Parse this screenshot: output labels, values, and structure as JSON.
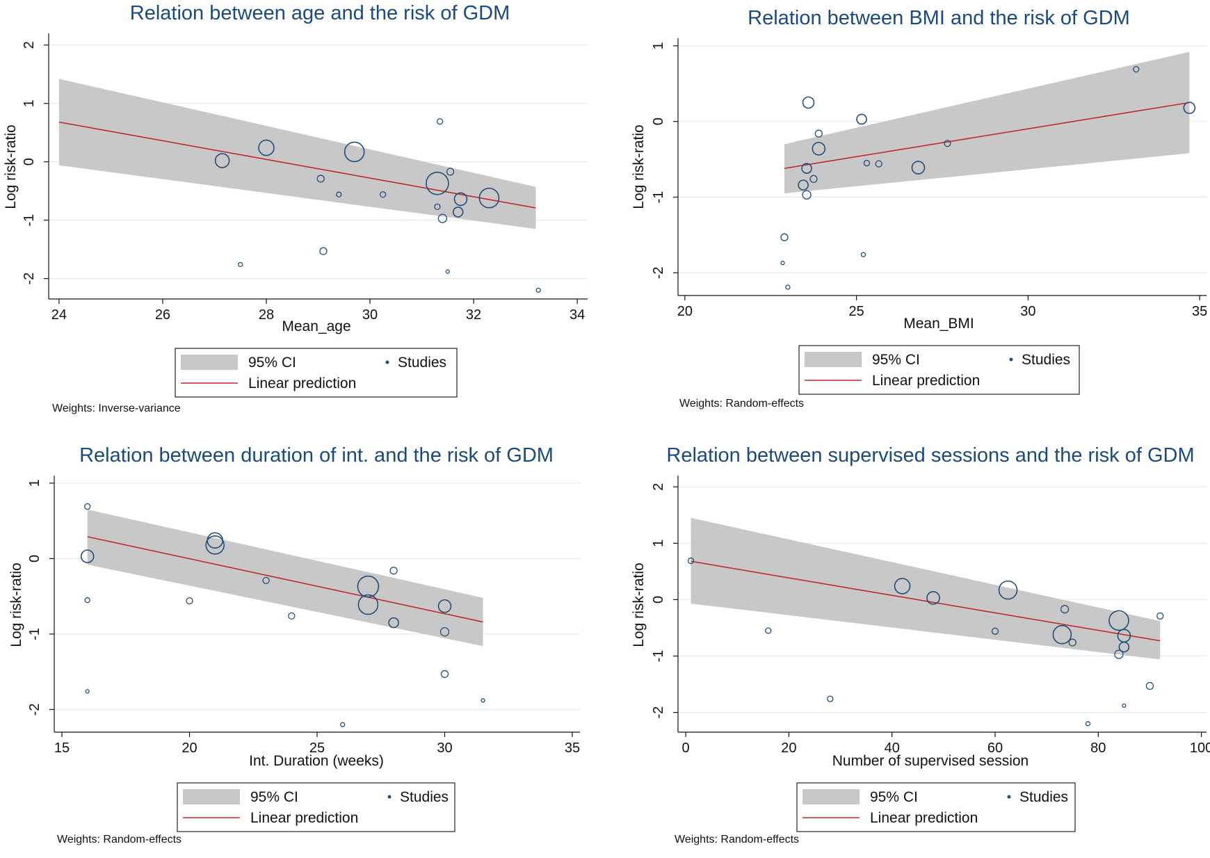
{
  "chart_data": [
    {
      "type": "scatter",
      "title": "Relation between age and the risk of GDM",
      "xlabel": "Mean_age",
      "ylabel": "Log risk-ratio",
      "xlim": [
        23.8,
        34.2
      ],
      "ylim": [
        -2.35,
        2.2
      ],
      "xticks": [
        24,
        26,
        28,
        30,
        32,
        34
      ],
      "yticks": [
        -2,
        -1,
        0,
        1,
        2
      ],
      "legend": {
        "ci": "95% CI",
        "studies": "Studies",
        "line": "Linear prediction"
      },
      "weights_note": "Weights: Inverse-variance",
      "ci_band": {
        "x": [
          24,
          33.2
        ],
        "upper": [
          1.42,
          -0.43
        ],
        "lower": [
          -0.06,
          -1.15
        ]
      },
      "fit_line": {
        "x": [
          24,
          33.2
        ],
        "y": [
          0.68,
          -0.79
        ]
      },
      "studies": [
        {
          "x": 27.15,
          "y": 0.02,
          "size": 10
        },
        {
          "x": 28.0,
          "y": 0.24,
          "size": 11
        },
        {
          "x": 29.7,
          "y": 0.17,
          "size": 14
        },
        {
          "x": 29.05,
          "y": -0.29,
          "size": 5
        },
        {
          "x": 29.4,
          "y": -0.56,
          "size": 3.5
        },
        {
          "x": 30.25,
          "y": -0.56,
          "size": 4
        },
        {
          "x": 27.5,
          "y": -1.76,
          "size": 3
        },
        {
          "x": 29.1,
          "y": -1.53,
          "size": 5
        },
        {
          "x": 31.35,
          "y": 0.69,
          "size": 4
        },
        {
          "x": 31.55,
          "y": -0.17,
          "size": 5
        },
        {
          "x": 31.3,
          "y": -0.37,
          "size": 16
        },
        {
          "x": 31.3,
          "y": -0.77,
          "size": 4
        },
        {
          "x": 31.4,
          "y": -0.97,
          "size": 6
        },
        {
          "x": 31.7,
          "y": -0.86,
          "size": 7
        },
        {
          "x": 31.75,
          "y": -0.64,
          "size": 9
        },
        {
          "x": 32.3,
          "y": -0.62,
          "size": 14
        },
        {
          "x": 31.5,
          "y": -1.88,
          "size": 2.5
        },
        {
          "x": 33.25,
          "y": -2.2,
          "size": 3
        }
      ]
    },
    {
      "type": "scatter",
      "title": "Relation between BMI and the risk of GDM",
      "xlabel": "Mean_BMI",
      "ylabel": "Log risk-ratio",
      "xlim": [
        19.8,
        35.2
      ],
      "ylim": [
        -2.3,
        1.1
      ],
      "xticks": [
        20,
        25,
        30,
        35
      ],
      "yticks": [
        -2,
        -1,
        0,
        1
      ],
      "legend": {
        "ci": "95% CI",
        "studies": "Studies",
        "line": "Linear prediction"
      },
      "weights_note": "Weights: Random-effects",
      "ci_band": {
        "x": [
          22.9,
          34.7
        ],
        "upper": [
          -0.3,
          0.92
        ],
        "lower": [
          -0.95,
          -0.42
        ]
      },
      "fit_line": {
        "x": [
          22.9,
          34.7
        ],
        "y": [
          -0.62,
          0.25
        ]
      },
      "studies": [
        {
          "x": 23.6,
          "y": 0.25,
          "size": 8
        },
        {
          "x": 25.15,
          "y": 0.03,
          "size": 7
        },
        {
          "x": 23.9,
          "y": -0.16,
          "size": 5
        },
        {
          "x": 23.9,
          "y": -0.36,
          "size": 9
        },
        {
          "x": 23.55,
          "y": -0.62,
          "size": 7
        },
        {
          "x": 23.75,
          "y": -0.76,
          "size": 5
        },
        {
          "x": 23.45,
          "y": -0.84,
          "size": 7
        },
        {
          "x": 23.55,
          "y": -0.97,
          "size": 6
        },
        {
          "x": 25.3,
          "y": -0.55,
          "size": 4
        },
        {
          "x": 25.65,
          "y": -0.56,
          "size": 4.5
        },
        {
          "x": 26.8,
          "y": -0.61,
          "size": 9
        },
        {
          "x": 27.65,
          "y": -0.29,
          "size": 4.5
        },
        {
          "x": 22.9,
          "y": -1.53,
          "size": 5
        },
        {
          "x": 22.85,
          "y": -1.87,
          "size": 2.5
        },
        {
          "x": 23.0,
          "y": -2.19,
          "size": 3
        },
        {
          "x": 25.2,
          "y": -1.76,
          "size": 3
        },
        {
          "x": 33.15,
          "y": 0.69,
          "size": 4
        },
        {
          "x": 34.7,
          "y": 0.18,
          "size": 8
        }
      ]
    },
    {
      "type": "scatter",
      "title": "Relation between duration of int. and the risk of GDM",
      "xlabel": "Int. Duration (weeks)",
      "ylabel": "Log risk-ratio",
      "xlim": [
        14.7,
        35.3
      ],
      "ylim": [
        -2.3,
        1.1
      ],
      "xticks": [
        15,
        20,
        25,
        30,
        35
      ],
      "yticks": [
        -2,
        -1,
        0,
        1
      ],
      "legend": {
        "ci": "95% CI",
        "studies": "Studies",
        "line": "Linear prediction"
      },
      "weights_note": "Weights: Random-effects",
      "ci_band": {
        "x": [
          16,
          31.5
        ],
        "upper": [
          0.65,
          -0.52
        ],
        "lower": [
          -0.08,
          -1.16
        ]
      },
      "fit_line": {
        "x": [
          16,
          31.5
        ],
        "y": [
          0.29,
          -0.84
        ]
      },
      "studies": [
        {
          "x": 16.0,
          "y": 0.69,
          "size": 4
        },
        {
          "x": 16.0,
          "y": 0.03,
          "size": 9
        },
        {
          "x": 16.0,
          "y": -0.55,
          "size": 3.5
        },
        {
          "x": 16.0,
          "y": -1.76,
          "size": 2.5
        },
        {
          "x": 21.0,
          "y": 0.24,
          "size": 11
        },
        {
          "x": 21.0,
          "y": 0.18,
          "size": 13
        },
        {
          "x": 20.0,
          "y": -0.56,
          "size": 4.5
        },
        {
          "x": 23.0,
          "y": -0.29,
          "size": 4.5
        },
        {
          "x": 24.0,
          "y": -0.76,
          "size": 4.5
        },
        {
          "x": 26.0,
          "y": -2.2,
          "size": 3
        },
        {
          "x": 27.0,
          "y": -0.37,
          "size": 15
        },
        {
          "x": 27.0,
          "y": -0.61,
          "size": 14
        },
        {
          "x": 28.0,
          "y": -0.16,
          "size": 5
        },
        {
          "x": 28.0,
          "y": -0.85,
          "size": 7
        },
        {
          "x": 30.0,
          "y": -0.63,
          "size": 9
        },
        {
          "x": 30.0,
          "y": -0.97,
          "size": 6
        },
        {
          "x": 30.0,
          "y": -1.53,
          "size": 5
        },
        {
          "x": 31.5,
          "y": -1.88,
          "size": 2.5
        }
      ]
    },
    {
      "type": "scatter",
      "title": "Relation between supervised sessions and the risk of GDM",
      "xlabel": "Number of supervised session",
      "ylabel": "Log risk-ratio",
      "xlim": [
        -1.5,
        101
      ],
      "ylim": [
        -2.35,
        2.2
      ],
      "xticks": [
        0,
        20,
        40,
        60,
        80,
        100
      ],
      "yticks": [
        -2,
        -1,
        0,
        1,
        2
      ],
      "legend": {
        "ci": "95% CI",
        "studies": "Studies",
        "line": "Linear prediction"
      },
      "weights_note": "Weights: Random-effects",
      "ci_band": {
        "x": [
          1,
          92
        ],
        "upper": [
          1.45,
          -0.38
        ],
        "lower": [
          -0.07,
          -1.06
        ]
      },
      "fit_line": {
        "x": [
          1,
          92
        ],
        "y": [
          0.68,
          -0.73
        ]
      },
      "studies": [
        {
          "x": 1.0,
          "y": 0.69,
          "size": 4
        },
        {
          "x": 16.0,
          "y": -0.55,
          "size": 4
        },
        {
          "x": 28.0,
          "y": -1.76,
          "size": 4
        },
        {
          "x": 42.0,
          "y": 0.24,
          "size": 11
        },
        {
          "x": 48.0,
          "y": 0.03,
          "size": 9
        },
        {
          "x": 60.0,
          "y": -0.56,
          "size": 4.5
        },
        {
          "x": 62.5,
          "y": 0.17,
          "size": 13
        },
        {
          "x": 73.5,
          "y": -0.17,
          "size": 5.5
        },
        {
          "x": 73.0,
          "y": -0.62,
          "size": 13
        },
        {
          "x": 75.0,
          "y": -0.76,
          "size": 5
        },
        {
          "x": 78.0,
          "y": -2.2,
          "size": 3
        },
        {
          "x": 84.0,
          "y": -0.37,
          "size": 14
        },
        {
          "x": 85.0,
          "y": -0.64,
          "size": 9
        },
        {
          "x": 85.0,
          "y": -0.84,
          "size": 7
        },
        {
          "x": 84.0,
          "y": -0.97,
          "size": 6
        },
        {
          "x": 85.0,
          "y": -1.88,
          "size": 2.5
        },
        {
          "x": 90.0,
          "y": -1.53,
          "size": 5
        },
        {
          "x": 92.0,
          "y": -0.29,
          "size": 4.5
        }
      ]
    }
  ]
}
